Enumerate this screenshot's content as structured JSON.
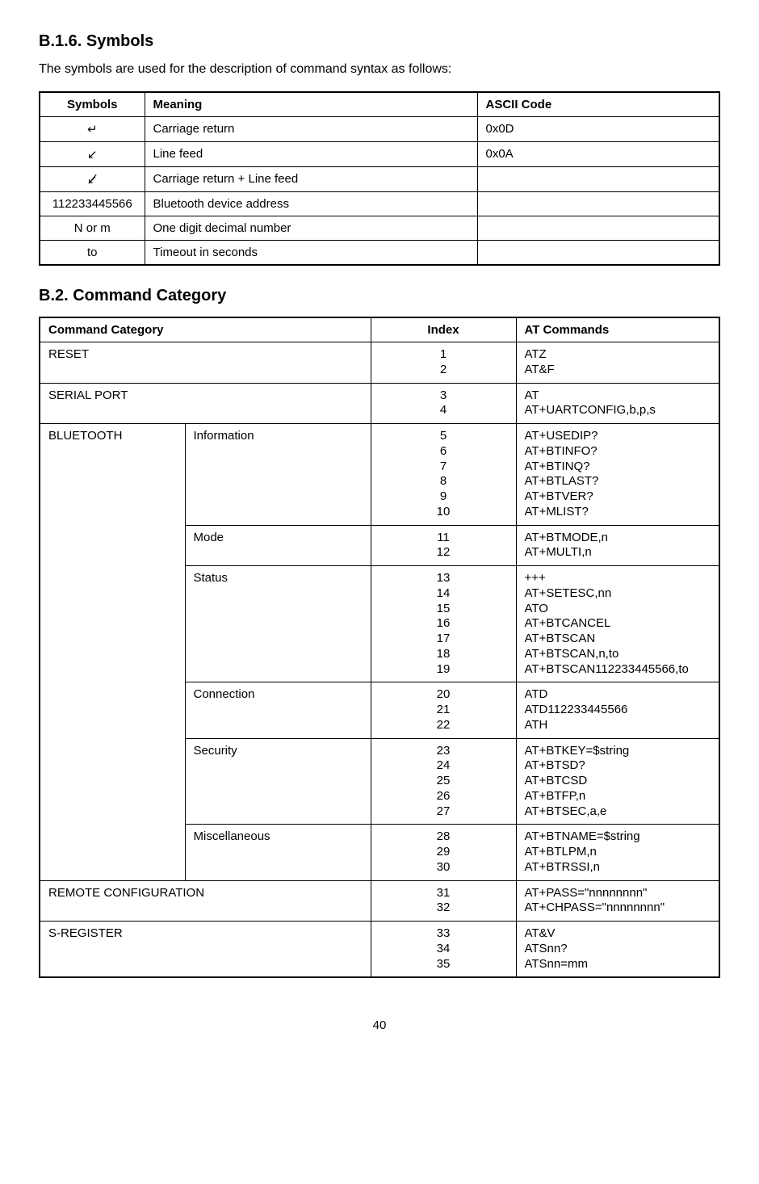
{
  "section1": {
    "heading": "B.1.6. Symbols",
    "intro": "The symbols are used for the description of command syntax as follows:",
    "headers": {
      "symbols": "Symbols",
      "meaning": "Meaning",
      "ascii": "ASCII Code"
    },
    "rows": [
      {
        "symbol": "↵",
        "meaning": "Carriage return",
        "ascii": "0x0D"
      },
      {
        "symbol": "↙",
        "meaning": "Line feed",
        "ascii": "0x0A"
      },
      {
        "symbol": "↙̸",
        "meaning": "Carriage return + Line feed",
        "ascii": ""
      },
      {
        "symbol": "112233445566",
        "meaning": "Bluetooth device address",
        "ascii": ""
      },
      {
        "symbol": "N or m",
        "meaning": "One digit decimal number",
        "ascii": ""
      },
      {
        "symbol": "to",
        "meaning": "Timeout in seconds",
        "ascii": ""
      }
    ]
  },
  "section2": {
    "heading": "B.2. Command Category",
    "headers": {
      "category": "Command Category",
      "index": "Index",
      "at": "AT Commands"
    },
    "reset": {
      "label": "RESET",
      "indices": [
        "1",
        "2"
      ],
      "cmds": [
        "ATZ",
        "AT&F"
      ]
    },
    "serial": {
      "label": "SERIAL PORT",
      "indices": [
        "3",
        "4"
      ],
      "cmds": [
        "AT",
        "AT+UARTCONFIG,b,p,s"
      ]
    },
    "bluetooth": {
      "label": "BLUETOOTH",
      "sub": [
        {
          "label": "Information",
          "indices": [
            "5",
            "6",
            "7",
            "8",
            "9",
            "10"
          ],
          "cmds": [
            "AT+USEDIP?",
            "AT+BTINFO?",
            "AT+BTINQ?",
            "AT+BTLAST?",
            "AT+BTVER?",
            "AT+MLIST?"
          ]
        },
        {
          "label": "Mode",
          "indices": [
            "11",
            "12"
          ],
          "cmds": [
            "AT+BTMODE,n",
            "AT+MULTI,n"
          ]
        },
        {
          "label": "Status",
          "indices": [
            "13",
            "14",
            "15",
            "16",
            "17",
            "18",
            "19"
          ],
          "cmds": [
            "+++",
            "AT+SETESC,nn",
            "ATO",
            "AT+BTCANCEL",
            "AT+BTSCAN",
            "AT+BTSCAN,n,to",
            "AT+BTSCAN112233445566,to"
          ]
        },
        {
          "label": "Connection",
          "indices": [
            "20",
            "21",
            "22"
          ],
          "cmds": [
            "ATD",
            "ATD112233445566",
            "ATH"
          ]
        },
        {
          "label": "Security",
          "indices": [
            "23",
            "24",
            "25",
            "26",
            "27"
          ],
          "cmds": [
            "AT+BTKEY=$string",
            "AT+BTSD?",
            "AT+BTCSD",
            "AT+BTFP,n",
            "AT+BTSEC,a,e"
          ]
        },
        {
          "label": "Miscellaneous",
          "indices": [
            "28",
            "29",
            "30"
          ],
          "cmds": [
            "AT+BTNAME=$string",
            "AT+BTLPM,n",
            "AT+BTRSSI,n"
          ]
        }
      ]
    },
    "remote": {
      "label": "REMOTE CONFIGURATION",
      "indices": [
        "31",
        "32"
      ],
      "cmds": [
        "AT+PASS=\"nnnnnnnn\"",
        "AT+CHPASS=\"nnnnnnnn\""
      ]
    },
    "sreg": {
      "label": "S-REGISTER",
      "indices": [
        "33",
        "34",
        "35"
      ],
      "cmds": [
        "AT&V",
        "ATSnn?",
        "ATSnn=mm"
      ]
    }
  },
  "pageNumber": "40"
}
